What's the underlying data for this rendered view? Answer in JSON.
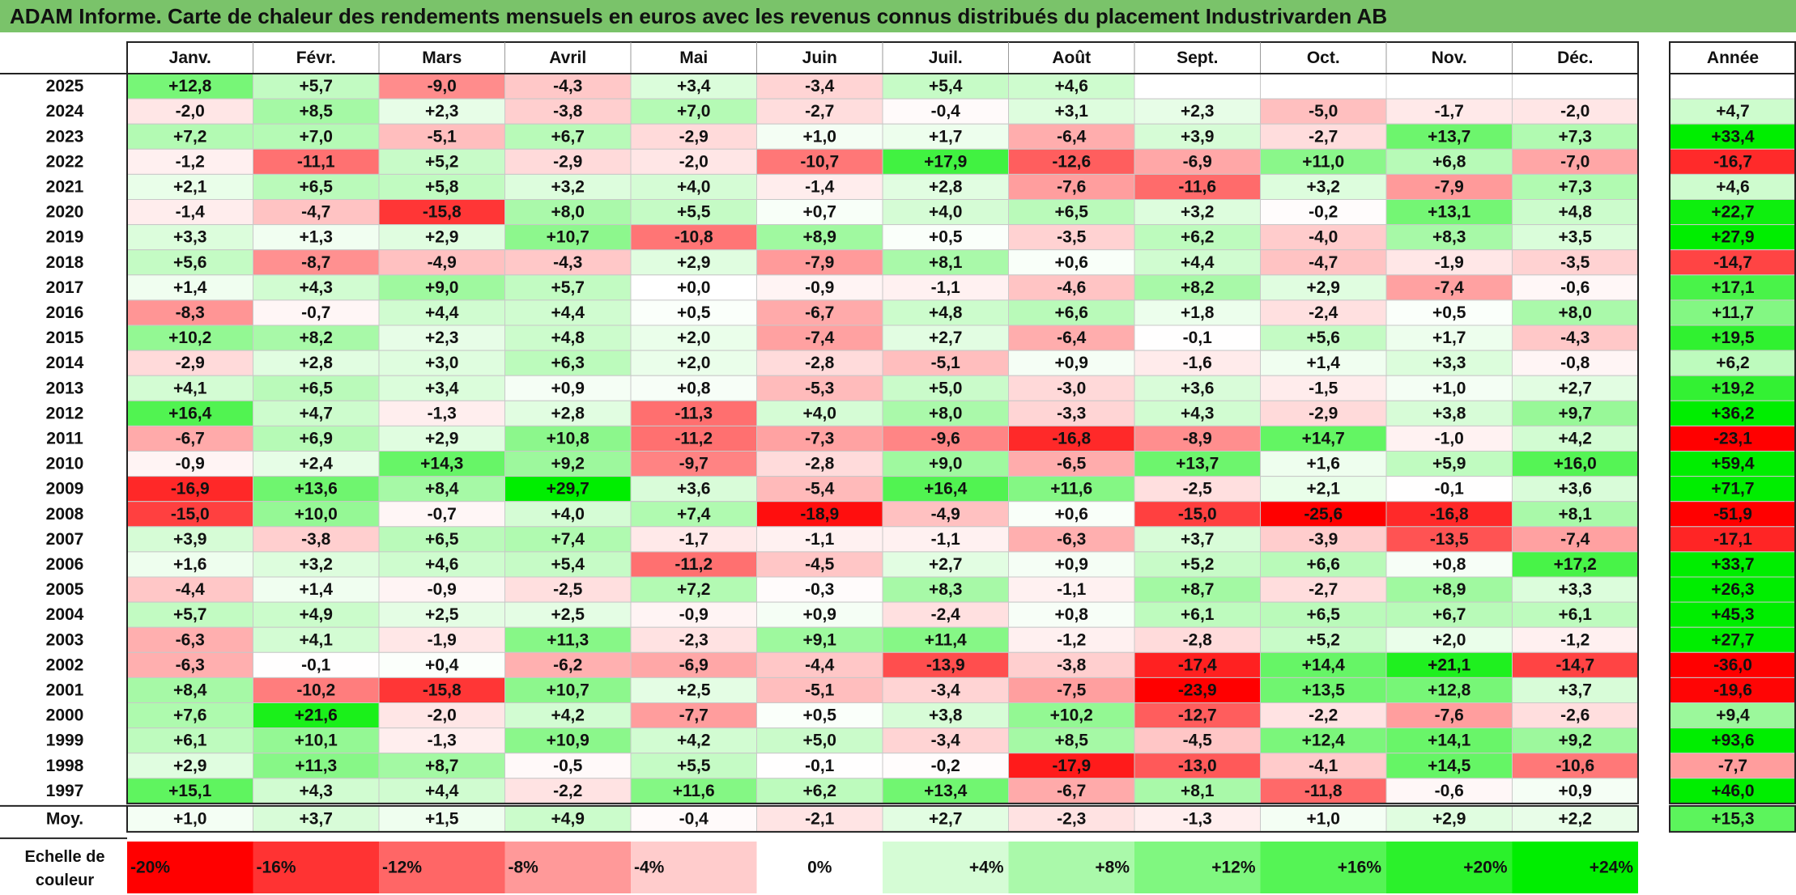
{
  "title": "ADAM Informe. Carte de chaleur des rendements mensuels en euros avec les revenus connus distribués du placement Industrivarden AB",
  "chart_data": {
    "type": "heatmap",
    "months": [
      "Janv.",
      "Févr.",
      "Mars",
      "Avril",
      "Mai",
      "Juin",
      "Juil.",
      "Août",
      "Sept.",
      "Oct.",
      "Nov.",
      "Déc."
    ],
    "annual_header": "Année",
    "rows": [
      {
        "year": "2025",
        "m": [
          12.8,
          5.7,
          -9.0,
          -4.3,
          3.4,
          -3.4,
          5.4,
          4.6,
          null,
          null,
          null,
          null
        ],
        "annual": null
      },
      {
        "year": "2024",
        "m": [
          -2.0,
          8.5,
          2.3,
          -3.8,
          7.0,
          -2.7,
          -0.4,
          3.1,
          2.3,
          -5.0,
          -1.7,
          -2.0
        ],
        "annual": 4.7
      },
      {
        "year": "2023",
        "m": [
          7.2,
          7.0,
          -5.1,
          6.7,
          -2.9,
          1.0,
          1.7,
          -6.4,
          3.9,
          -2.7,
          13.7,
          7.3
        ],
        "annual": 33.4
      },
      {
        "year": "2022",
        "m": [
          -1.2,
          -11.1,
          5.2,
          -2.9,
          -2.0,
          -10.7,
          17.9,
          -12.6,
          -6.9,
          11.0,
          6.8,
          -7.0
        ],
        "annual": -16.7
      },
      {
        "year": "2021",
        "m": [
          2.1,
          6.5,
          5.8,
          3.2,
          4.0,
          -1.4,
          2.8,
          -7.6,
          -11.6,
          3.2,
          -7.9,
          7.3
        ],
        "annual": 4.6
      },
      {
        "year": "2020",
        "m": [
          -1.4,
          -4.7,
          -15.8,
          8.0,
          5.5,
          0.7,
          4.0,
          6.5,
          3.2,
          -0.2,
          13.1,
          4.8
        ],
        "annual": 22.7
      },
      {
        "year": "2019",
        "m": [
          3.3,
          1.3,
          2.9,
          10.7,
          -10.8,
          8.9,
          0.5,
          -3.5,
          6.2,
          -4.0,
          8.3,
          3.5
        ],
        "annual": 27.9
      },
      {
        "year": "2018",
        "m": [
          5.6,
          -8.7,
          -4.9,
          -4.3,
          2.9,
          -7.9,
          8.1,
          0.6,
          4.4,
          -4.7,
          -1.9,
          -3.5
        ],
        "annual": -14.7
      },
      {
        "year": "2017",
        "m": [
          1.4,
          4.3,
          9.0,
          5.7,
          0.0,
          -0.9,
          -1.1,
          -4.6,
          8.2,
          2.9,
          -7.4,
          -0.6
        ],
        "annual": 17.1
      },
      {
        "year": "2016",
        "m": [
          -8.3,
          -0.7,
          4.4,
          4.4,
          0.5,
          -6.7,
          4.8,
          6.6,
          1.8,
          -2.4,
          0.5,
          8.0
        ],
        "annual": 11.7
      },
      {
        "year": "2015",
        "m": [
          10.2,
          8.2,
          2.3,
          4.8,
          2.0,
          -7.4,
          2.7,
          -6.4,
          -0.1,
          5.6,
          1.7,
          -4.3
        ],
        "annual": 19.5
      },
      {
        "year": "2014",
        "m": [
          -2.9,
          2.8,
          3.0,
          6.3,
          2.0,
          -2.8,
          -5.1,
          0.9,
          -1.6,
          1.4,
          3.3,
          -0.8
        ],
        "annual": 6.2
      },
      {
        "year": "2013",
        "m": [
          4.1,
          6.5,
          3.4,
          0.9,
          0.8,
          -5.3,
          5.0,
          -3.0,
          3.6,
          -1.5,
          1.0,
          2.7
        ],
        "annual": 19.2
      },
      {
        "year": "2012",
        "m": [
          16.4,
          4.7,
          -1.3,
          2.8,
          -11.3,
          4.0,
          8.0,
          -3.3,
          4.3,
          -2.9,
          3.8,
          9.7
        ],
        "annual": 36.2
      },
      {
        "year": "2011",
        "m": [
          -6.7,
          6.9,
          2.9,
          10.8,
          -11.2,
          -7.3,
          -9.6,
          -16.8,
          -8.9,
          14.7,
          -1.0,
          4.2
        ],
        "annual": -23.1
      },
      {
        "year": "2010",
        "m": [
          -0.9,
          2.4,
          14.3,
          9.2,
          -9.7,
          -2.8,
          9.0,
          -6.5,
          13.7,
          1.6,
          5.9,
          16.0
        ],
        "annual": 59.4
      },
      {
        "year": "2009",
        "m": [
          -16.9,
          13.6,
          8.4,
          29.7,
          3.6,
          -5.4,
          16.4,
          11.6,
          -2.5,
          2.1,
          -0.1,
          3.6
        ],
        "annual": 71.7
      },
      {
        "year": "2008",
        "m": [
          -15.0,
          10.0,
          -0.7,
          4.0,
          7.4,
          -18.9,
          -4.9,
          0.6,
          -15.0,
          -25.6,
          -16.8,
          8.1
        ],
        "annual": -51.9
      },
      {
        "year": "2007",
        "m": [
          3.9,
          -3.8,
          6.5,
          7.4,
          -1.7,
          -1.1,
          -1.1,
          -6.3,
          3.7,
          -3.9,
          -13.5,
          -7.4
        ],
        "annual": -17.1
      },
      {
        "year": "2006",
        "m": [
          1.6,
          3.2,
          4.6,
          5.4,
          -11.2,
          -4.5,
          2.7,
          0.9,
          5.2,
          6.6,
          0.8,
          17.2
        ],
        "annual": 33.7
      },
      {
        "year": "2005",
        "m": [
          -4.4,
          1.4,
          -0.9,
          -2.5,
          7.2,
          -0.3,
          8.3,
          -1.1,
          8.7,
          -2.7,
          8.9,
          3.3
        ],
        "annual": 26.3
      },
      {
        "year": "2004",
        "m": [
          5.7,
          4.9,
          2.5,
          2.5,
          -0.9,
          0.9,
          -2.4,
          0.8,
          6.1,
          6.5,
          6.7,
          6.1
        ],
        "annual": 45.3
      },
      {
        "year": "2003",
        "m": [
          -6.3,
          4.1,
          -1.9,
          11.3,
          -2.3,
          9.1,
          11.4,
          -1.2,
          -2.8,
          5.2,
          2.0,
          -1.2
        ],
        "annual": 27.7
      },
      {
        "year": "2002",
        "m": [
          -6.3,
          -0.1,
          0.4,
          -6.2,
          -6.9,
          -4.4,
          -13.9,
          -3.8,
          -17.4,
          14.4,
          21.1,
          -14.7
        ],
        "annual": -36.0
      },
      {
        "year": "2001",
        "m": [
          8.4,
          -10.2,
          -15.8,
          10.7,
          2.5,
          -5.1,
          -3.4,
          -7.5,
          -23.9,
          13.5,
          12.8,
          3.7
        ],
        "annual": -19.6
      },
      {
        "year": "2000",
        "m": [
          7.6,
          21.6,
          -2.0,
          4.2,
          -7.7,
          0.5,
          3.8,
          10.2,
          -12.7,
          -2.2,
          -7.6,
          -2.6
        ],
        "annual": 9.4
      },
      {
        "year": "1999",
        "m": [
          6.1,
          10.1,
          -1.3,
          10.9,
          4.2,
          5.0,
          -3.4,
          8.5,
          -4.5,
          12.4,
          14.1,
          9.2
        ],
        "annual": 93.6
      },
      {
        "year": "1998",
        "m": [
          2.9,
          11.3,
          8.7,
          -0.5,
          5.5,
          -0.1,
          -0.2,
          -17.9,
          -13.0,
          -4.1,
          14.5,
          -10.6
        ],
        "annual": -7.7
      },
      {
        "year": "1997",
        "m": [
          15.1,
          4.3,
          4.4,
          -2.2,
          11.6,
          6.2,
          13.4,
          -6.7,
          8.1,
          -11.8,
          -0.6,
          0.9
        ],
        "annual": 46.0
      }
    ],
    "average": {
      "label": "Moy.",
      "m": [
        1.0,
        3.7,
        1.5,
        4.9,
        -0.4,
        -2.1,
        2.7,
        -2.3,
        -1.3,
        1.0,
        2.9,
        2.2
      ],
      "annual": 15.3
    },
    "scale": {
      "label_line1": "Echelle de",
      "label_line2": "couleur",
      "steps": [
        -20,
        -16,
        -12,
        -8,
        -4,
        0,
        4,
        8,
        12,
        16,
        20,
        24
      ],
      "step_labels": [
        "-20%",
        "-16%",
        "-12%",
        "-8%",
        "-4%",
        "0%",
        "+4%",
        "+8%",
        "+12%",
        "+16%",
        "+20%",
        "+24%"
      ]
    },
    "colors": {
      "negative_max": "#ff0000",
      "neutral": "#ffffff",
      "positive_max": "#00ee00",
      "title_bar": "#7ac36a"
    }
  }
}
